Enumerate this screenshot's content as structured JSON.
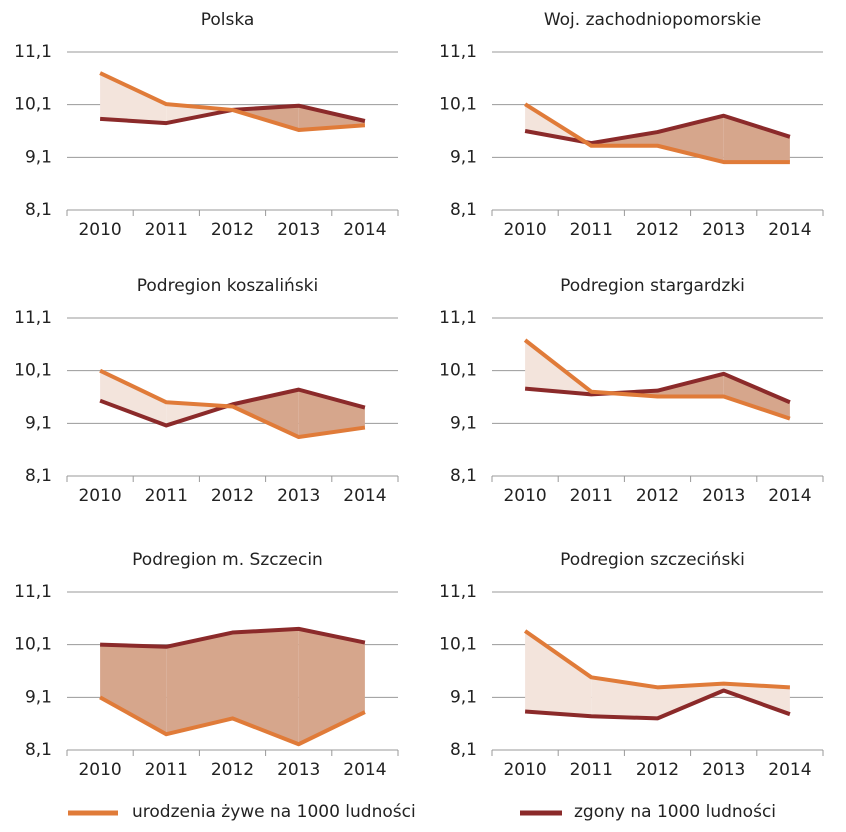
{
  "chart_data": [
    {
      "type": "line",
      "title": "Polska",
      "categories": [
        "2010",
        "2011",
        "2012",
        "2013",
        "2014"
      ],
      "series": [
        {
          "name": "urodzenia żywe na 1000 ludności",
          "color": "#e07b39",
          "values": [
            10.7,
            10.11,
            10.0,
            9.62,
            9.71
          ]
        },
        {
          "name": "zgony na 1000 ludności",
          "color": "#8b2a2a",
          "values": [
            9.83,
            9.75,
            10.0,
            10.08,
            9.79
          ]
        }
      ],
      "ylim": [
        8.1,
        11.1
      ],
      "yticks": [
        {
          "value": 8.1,
          "label": "8,1"
        },
        {
          "value": 9.1,
          "label": "9,1"
        },
        {
          "value": 10.1,
          "label": "10,1"
        },
        {
          "value": 11.1,
          "label": "11,1"
        }
      ],
      "grid": true,
      "area_colors": [
        "#f3e4dc",
        "#d6a68c"
      ]
    },
    {
      "type": "line",
      "title": "Woj. zachodniopomorskie",
      "categories": [
        "2010",
        "2011",
        "2012",
        "2013",
        "2014"
      ],
      "series": [
        {
          "name": "urodzenia żywe na 1000 ludności",
          "color": "#e07b39",
          "values": [
            10.11,
            9.32,
            9.32,
            9.01,
            9.01
          ]
        },
        {
          "name": "zgony na 1000 ludności",
          "color": "#8b2a2a",
          "values": [
            9.6,
            9.37,
            9.58,
            9.89,
            9.49
          ]
        }
      ],
      "ylim": [
        8.1,
        11.1
      ],
      "yticks": [
        {
          "value": 8.1,
          "label": "8,1"
        },
        {
          "value": 9.1,
          "label": "9,1"
        },
        {
          "value": 10.1,
          "label": "10,1"
        },
        {
          "value": 11.1,
          "label": "11,1"
        }
      ],
      "grid": true,
      "area_colors": [
        "#f3e4dc",
        "#d6a68c"
      ]
    },
    {
      "type": "line",
      "title": "Podregion koszaliński",
      "categories": [
        "2010",
        "2011",
        "2012",
        "2013",
        "2014"
      ],
      "series": [
        {
          "name": "urodzenia żywe na 1000 ludności",
          "color": "#e07b39",
          "values": [
            10.1,
            9.5,
            9.42,
            8.84,
            9.02
          ]
        },
        {
          "name": "zgony na 1000 ludności",
          "color": "#8b2a2a",
          "values": [
            9.53,
            9.06,
            9.46,
            9.74,
            9.4
          ]
        }
      ],
      "ylim": [
        8.1,
        11.1
      ],
      "yticks": [
        {
          "value": 8.1,
          "label": "8,1"
        },
        {
          "value": 9.1,
          "label": "9,1"
        },
        {
          "value": 10.1,
          "label": "10,1"
        },
        {
          "value": 11.1,
          "label": "11,1"
        }
      ],
      "grid": true,
      "area_colors": [
        "#f3e4dc",
        "#d6a68c"
      ]
    },
    {
      "type": "line",
      "title": "Podregion stargardzki",
      "categories": [
        "2010",
        "2011",
        "2012",
        "2013",
        "2014"
      ],
      "series": [
        {
          "name": "urodzenia żywe na 1000 ludności",
          "color": "#e07b39",
          "values": [
            10.68,
            9.7,
            9.61,
            9.61,
            9.19
          ]
        },
        {
          "name": "zgony na 1000 ludności",
          "color": "#8b2a2a",
          "values": [
            9.76,
            9.65,
            9.72,
            10.04,
            9.5
          ]
        }
      ],
      "ylim": [
        8.1,
        11.1
      ],
      "yticks": [
        {
          "value": 8.1,
          "label": "8,1"
        },
        {
          "value": 9.1,
          "label": "9,1"
        },
        {
          "value": 10.1,
          "label": "10,1"
        },
        {
          "value": 11.1,
          "label": "11,1"
        }
      ],
      "grid": true,
      "area_colors": [
        "#f3e4dc",
        "#d6a68c"
      ]
    },
    {
      "type": "line",
      "title": "Podregion m. Szczecin",
      "categories": [
        "2010",
        "2011",
        "2012",
        "2013",
        "2014"
      ],
      "series": [
        {
          "name": "urodzenia żywe na 1000 ludności",
          "color": "#e07b39",
          "values": [
            9.1,
            8.4,
            8.7,
            8.21,
            8.82
          ]
        },
        {
          "name": "zgony na 1000 ludności",
          "color": "#8b2a2a",
          "values": [
            10.1,
            10.06,
            10.33,
            10.4,
            10.14
          ]
        }
      ],
      "ylim": [
        8.1,
        11.1
      ],
      "yticks": [
        {
          "value": 8.1,
          "label": "8,1"
        },
        {
          "value": 9.1,
          "label": "9,1"
        },
        {
          "value": 10.1,
          "label": "10,1"
        },
        {
          "value": 11.1,
          "label": "11,1"
        }
      ],
      "grid": true,
      "area_colors": [
        "#f3e4dc",
        "#d6a68c"
      ]
    },
    {
      "type": "line",
      "title": "Podregion szczeciński",
      "categories": [
        "2010",
        "2011",
        "2012",
        "2013",
        "2014"
      ],
      "series": [
        {
          "name": "urodzenia żywe na 1000 ludności",
          "color": "#e07b39",
          "values": [
            10.36,
            9.48,
            9.29,
            9.36,
            9.29
          ]
        },
        {
          "name": "zgony na 1000 ludności",
          "color": "#8b2a2a",
          "values": [
            8.83,
            8.74,
            8.7,
            9.23,
            8.78
          ]
        }
      ],
      "ylim": [
        8.1,
        11.1
      ],
      "yticks": [
        {
          "value": 8.1,
          "label": "8,1"
        },
        {
          "value": 9.1,
          "label": "9,1"
        },
        {
          "value": 10.1,
          "label": "10,1"
        },
        {
          "value": 11.1,
          "label": "11,1"
        }
      ],
      "grid": true,
      "area_colors": [
        "#f3e4dc",
        "#d6a68c"
      ]
    }
  ]
}
